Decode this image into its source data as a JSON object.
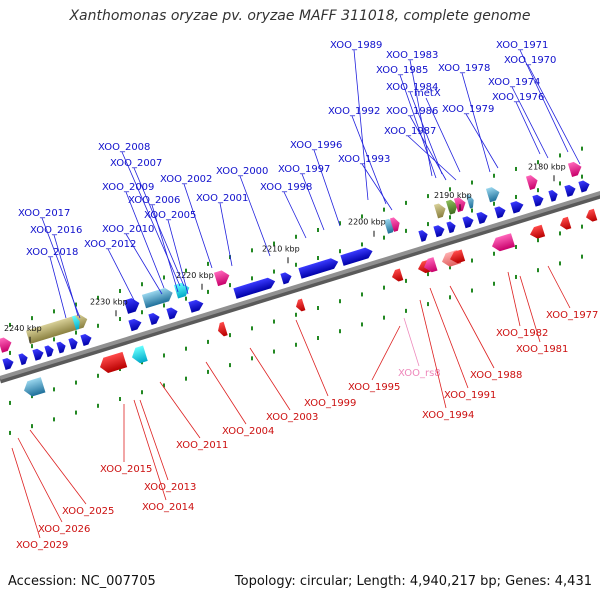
{
  "title": "Xanthomonas oryzae pv. oryzae MAFF 311018, complete genome",
  "footer": {
    "accession": "Accession: NC_007705",
    "stats": "Topology: circular; Length: 4,940,217 bp; Genes: 4,431"
  },
  "colors": {
    "axis": "#909090",
    "forward_gene": "#1414e6",
    "reverse_gene": "#e01414",
    "leader_forward": "#2020dd",
    "leader_reverse": "#dd2020",
    "rna": "#ee88bb",
    "tick": "#228822"
  },
  "ruler": [
    "2180 kbp",
    "2190 kbp",
    "2200 kbp",
    "2210 kbp",
    "2220 kbp",
    "2230 kbp",
    "2240 kbp"
  ],
  "upper_labels": [
    "XOO_1989",
    "XOO_1983",
    "XOO_1971",
    "XOO_1985",
    "XOO_1978",
    "XOO_1970",
    "XOO_1984",
    "XOO_1974",
    "metX",
    "XOO_1976",
    "XOO_1992",
    "XOO_1986",
    "XOO_1979",
    "XOO_1987",
    "XOO_2008",
    "XOO_1996",
    "XOO_2007",
    "XOO_1993",
    "XOO_2002",
    "XOO_2000",
    "XOO_1997",
    "XOO_2009",
    "XOO_1998",
    "XOO_2006",
    "XOO_2001",
    "XOO_2017",
    "XOO_2005",
    "XOO_2016",
    "XOO_2010",
    "XOO_2012",
    "XOO_2018"
  ],
  "lower_labels": [
    "XOO_1977",
    "XOO_1982",
    "XOO_1981",
    "XOO_1988",
    "XOO_rs8",
    "XOO_1995",
    "XOO_1991",
    "XOO_1999",
    "XOO_1994",
    "XOO_2003",
    "XOO_2004",
    "XOO_2011",
    "XOO_2015",
    "XOO_2013",
    "XOO_2014",
    "XOO_2025",
    "XOO_2026",
    "XOO_2029"
  ]
}
